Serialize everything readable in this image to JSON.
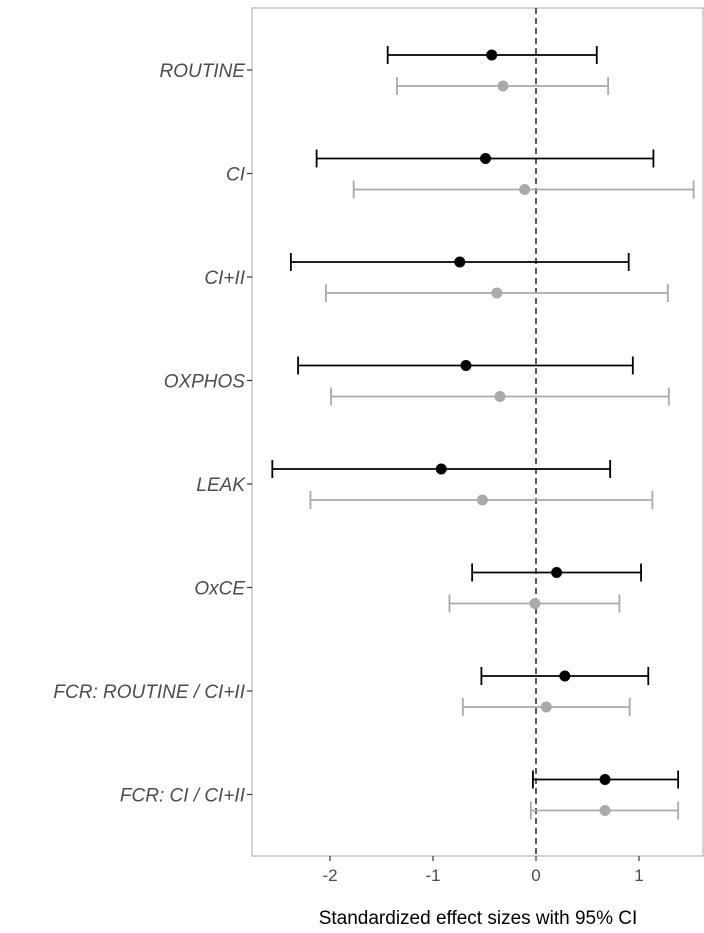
{
  "chart_data": {
    "type": "forest",
    "title": "",
    "xlabel": "Standardized effect sizes with 95% CI",
    "ylabel": "",
    "xlim": [
      -2.75,
      1.65
    ],
    "x_ticks": [
      -2,
      -1,
      0,
      1
    ],
    "reference_line": 0,
    "grid": false,
    "legend": "none",
    "colors": {
      "series_1": "#000000",
      "series_2": "#aaaaaa",
      "reference": "#333333",
      "panel_border": "#aaaaaa"
    },
    "categories": [
      "ROUTINE",
      "CI",
      "CI+II",
      "OXPHOS",
      "LEAK",
      "OxCE",
      "FCR: ROUTINE / CI+II",
      "FCR: CI / CI+II"
    ],
    "series": [
      {
        "color": "#000000",
        "estimate": [
          -0.43,
          -0.49,
          -0.74,
          -0.68,
          -0.92,
          0.2,
          0.28,
          0.67
        ],
        "lower": [
          -1.44,
          -2.13,
          -2.38,
          -2.31,
          -2.56,
          -0.62,
          -0.53,
          -0.03
        ],
        "upper": [
          0.59,
          1.14,
          0.9,
          0.94,
          0.72,
          1.02,
          1.09,
          1.38
        ]
      },
      {
        "color": "#aaaaaa",
        "estimate": [
          -0.32,
          -0.11,
          -0.38,
          -0.35,
          -0.52,
          -0.01,
          0.1,
          0.67
        ],
        "lower": [
          -1.35,
          -1.77,
          -2.04,
          -1.99,
          -2.19,
          -0.84,
          -0.71,
          -0.05
        ],
        "upper": [
          0.7,
          1.53,
          1.28,
          1.29,
          1.13,
          0.81,
          0.91,
          1.38
        ]
      }
    ]
  }
}
